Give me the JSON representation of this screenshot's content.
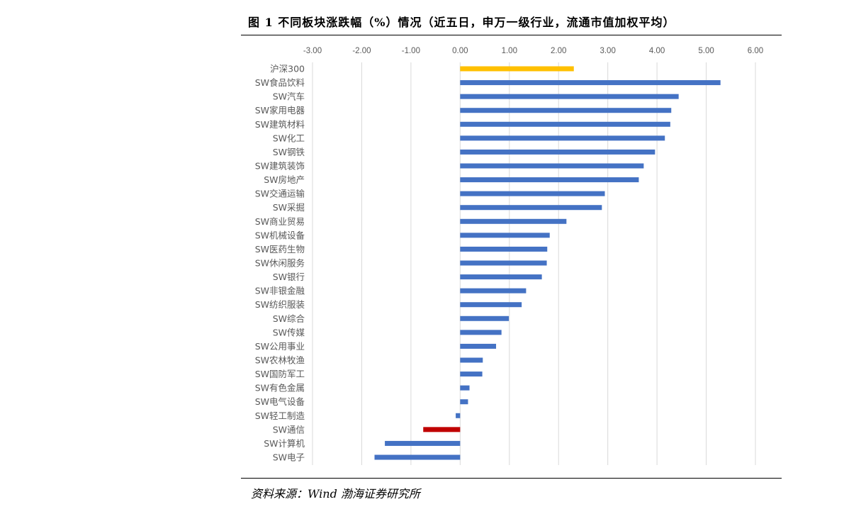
{
  "title": "图 1 不同板块涨跌幅（%）情况（近五日，申万一级行业，流通市值加权平均）",
  "source": "资料来源：Wind  渤海证券研究所",
  "chart_data": {
    "type": "bar",
    "orientation": "horizontal",
    "title": "图 1 不同板块涨跌幅（%）情况（近五日，申万一级行业，流通市值加权平均）",
    "xlabel": "",
    "ylabel": "",
    "xlim": [
      -3,
      6
    ],
    "x_ticks": [
      "-3.00",
      "-2.00",
      "-1.00",
      "0.00",
      "1.00",
      "2.00",
      "3.00",
      "4.00",
      "5.00",
      "6.00"
    ],
    "grid": true,
    "colors": {
      "default": "#4472C4",
      "benchmark": "#FFC000",
      "highlight_negative": "#C00000"
    },
    "categories": [
      "沪深300",
      "SW食品饮料",
      "SW汽车",
      "SW家用电器",
      "SW建筑材料",
      "SW化工",
      "SW钢铁",
      "SW建筑装饰",
      "SW房地产",
      "SW交通运输",
      "SW采掘",
      "SW商业贸易",
      "SW机械设备",
      "SW医药生物",
      "SW休闲服务",
      "SW银行",
      "SW非银金融",
      "SW纺织服装",
      "SW综合",
      "SW传媒",
      "SW公用事业",
      "SW农林牧渔",
      "SW国防军工",
      "SW有色金属",
      "SW电气设备",
      "SW轻工制造",
      "SW通信",
      "SW计算机",
      "SW电子"
    ],
    "values": [
      2.31,
      5.29,
      4.44,
      4.29,
      4.27,
      4.16,
      3.96,
      3.73,
      3.63,
      2.94,
      2.88,
      2.16,
      1.82,
      1.77,
      1.76,
      1.66,
      1.34,
      1.25,
      0.99,
      0.84,
      0.73,
      0.46,
      0.45,
      0.19,
      0.16,
      -0.09,
      -0.75,
      -1.53,
      -1.74
    ],
    "bar_color_keys": [
      "benchmark",
      "default",
      "default",
      "default",
      "default",
      "default",
      "default",
      "default",
      "default",
      "default",
      "default",
      "default",
      "default",
      "default",
      "default",
      "default",
      "default",
      "default",
      "default",
      "default",
      "default",
      "default",
      "default",
      "default",
      "default",
      "default",
      "highlight_negative",
      "default",
      "default"
    ]
  }
}
